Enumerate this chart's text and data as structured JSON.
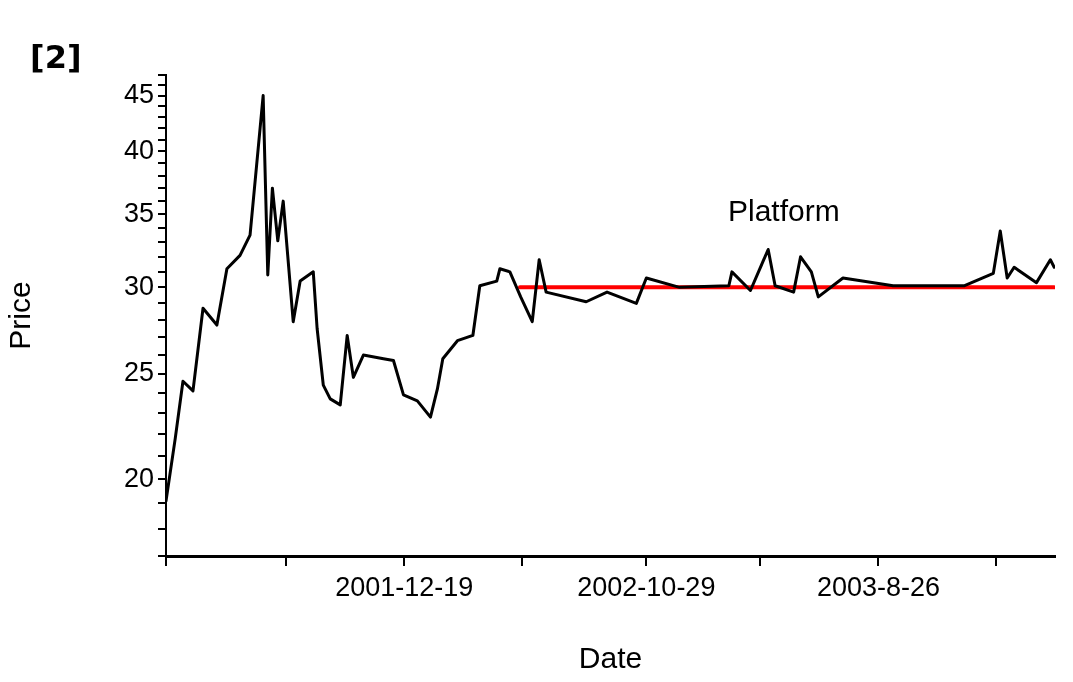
{
  "chart_data": {
    "type": "line",
    "title": "[2]",
    "xlabel": "Date",
    "ylabel": "Price",
    "log": "y",
    "grid": false,
    "legend": false,
    "marker": "none",
    "line_style": "solid",
    "xlim": [
      "2001-02-13",
      "2004-04-11"
    ],
    "xticks": [
      {
        "value": "2001-02-13",
        "label": null
      },
      {
        "value": "2001-07-18",
        "label": null
      },
      {
        "value": "2001-12-19",
        "label": "2001-12-19"
      },
      {
        "value": "2002-05-21",
        "label": null
      },
      {
        "value": "2002-10-29",
        "label": "2002-10-29"
      },
      {
        "value": "2003-03-25",
        "label": null
      },
      {
        "value": "2003-08-26",
        "label": "2003-8-26"
      },
      {
        "value": "2004-01-26",
        "label": null
      }
    ],
    "ylim": [
      17,
      47
    ],
    "yticks": [
      {
        "value": 17,
        "label": null
      },
      {
        "value": 18,
        "label": null
      },
      {
        "value": 19,
        "label": null
      },
      20,
      {
        "value": 21,
        "label": null
      },
      {
        "value": 22,
        "label": null
      },
      {
        "value": 23,
        "label": null
      },
      {
        "value": 24,
        "label": null
      },
      25,
      {
        "value": 26,
        "label": null
      },
      {
        "value": 27,
        "label": null
      },
      {
        "value": 28,
        "label": null
      },
      {
        "value": 29,
        "label": null
      },
      30,
      {
        "value": 31,
        "label": null
      },
      {
        "value": 32,
        "label": null
      },
      {
        "value": 33,
        "label": null
      },
      {
        "value": 34,
        "label": null
      },
      35,
      {
        "value": 36,
        "label": null
      },
      {
        "value": 37,
        "label": null
      },
      {
        "value": 38,
        "label": null
      },
      {
        "value": 39,
        "label": null
      },
      40,
      {
        "value": 41,
        "label": null
      },
      {
        "value": 42,
        "label": null
      },
      {
        "value": 43,
        "label": null
      },
      {
        "value": 44,
        "label": null
      },
      45,
      {
        "value": 46,
        "label": null
      },
      {
        "value": 47,
        "label": null
      }
    ],
    "annotations": [
      "Platform"
    ],
    "series": [
      {
        "type": "line",
        "color": "#000000",
        "x": [
          "2001-02-13",
          "2001-02-25",
          "2001-03-07",
          "2001-03-20",
          "2001-04-02",
          "2001-04-20",
          "2001-05-03",
          "2001-05-20",
          "2001-06-02",
          "2001-06-19",
          "2001-06-25",
          "2001-07-01",
          "2001-07-08",
          "2001-07-15",
          "2001-07-28",
          "2001-08-06",
          "2001-08-23",
          "2001-08-28",
          "2001-09-05",
          "2001-09-14",
          "2001-09-27",
          "2001-10-06",
          "2001-10-14",
          "2001-10-27",
          "2001-11-22",
          "2001-12-05",
          "2001-12-18",
          "2002-01-05",
          "2002-01-22",
          "2002-01-31",
          "2002-02-07",
          "2002-02-26",
          "2002-03-18",
          "2002-03-27",
          "2002-04-18",
          "2002-04-22",
          "2002-05-05",
          "2002-05-19",
          "2002-06-03",
          "2002-06-12",
          "2002-06-21",
          "2002-08-12",
          "2002-09-08",
          "2002-10-16",
          "2002-10-29",
          "2002-12-11",
          "2003-02-13",
          "2003-02-17",
          "2003-03-13",
          "2003-04-05",
          "2003-04-14",
          "2003-05-08",
          "2003-05-17",
          "2003-05-31",
          "2003-06-09",
          "2003-07-11",
          "2003-09-14",
          "2003-12-15",
          "2004-01-22",
          "2004-01-31",
          "2004-02-09",
          "2004-02-18",
          "2004-03-18",
          "2004-04-05",
          "2004-04-10"
        ],
        "values": [
          19.1,
          21.8,
          24.6,
          24.1,
          28.7,
          27.7,
          31.2,
          32.1,
          33.5,
          45,
          30.8,
          37.0,
          33.1,
          36.0,
          27.9,
          30.4,
          31.0,
          27.5,
          24.4,
          23.7,
          23.4,
          27.1,
          24.8,
          26.0,
          25.8,
          25.7,
          23.9,
          23.6,
          22.8,
          24.2,
          25.8,
          26.8,
          27.1,
          30.1,
          30.4,
          31.2,
          31.0,
          29.4,
          27.9,
          31.8,
          29.7,
          29.1,
          29.7,
          29.0,
          30.6,
          30.0,
          30.1,
          31.0,
          29.8,
          32.5,
          30.1,
          29.7,
          32.0,
          31.0,
          29.4,
          30.6,
          30.1,
          30.1,
          30.9,
          33.8,
          30.6,
          31.3,
          30.3,
          31.8,
          31.3
        ]
      },
      {
        "type": "line",
        "color": "#ff0000",
        "x": [
          "2002-05-18",
          "2004-04-10"
        ],
        "values": [
          30,
          30
        ]
      }
    ]
  }
}
